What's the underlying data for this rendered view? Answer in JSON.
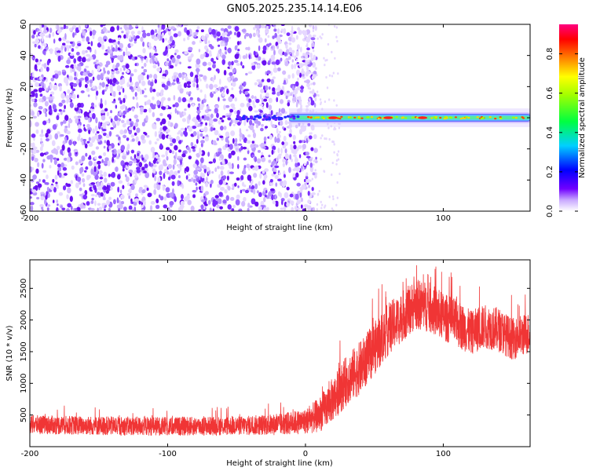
{
  "title": "GN05.2025.235.14.14.E06",
  "chart_data": [
    {
      "type": "heatmap",
      "xlabel": "Height of straight line (km)",
      "ylabel": "Frequency (Hz)",
      "xlim": [
        -200,
        163
      ],
      "ylim": [
        -60,
        60
      ],
      "xticks": [
        -200,
        -100,
        0,
        100
      ],
      "xtick_labels": [
        "-200",
        "-100",
        "0",
        "100"
      ],
      "yticks": [
        -60,
        -40,
        -20,
        0,
        20,
        40,
        60
      ],
      "ytick_labels": [
        "-60",
        "-40",
        "-20",
        "0",
        "20",
        "40",
        "60"
      ],
      "colorbar": {
        "label": "Normalized spectral amplitude",
        "range": [
          0,
          0.95
        ],
        "ticks": [
          0,
          0.2,
          0.4,
          0.6,
          0.8
        ],
        "tick_labels": [
          "0.0",
          "0.2",
          "0.4",
          "0.6",
          "0.8"
        ],
        "colormap": "rainbow (white-purple-blue-cyan-green-yellow-red-magenta)"
      },
      "features": {
        "noise_region_x": [
          -200,
          0
        ],
        "noise_amplitude": [
          0.0,
          0.15
        ],
        "signal_band": {
          "x_start": -50,
          "x_end": 163,
          "frequency": 0,
          "amplitude_range": [
            0.3,
            0.95
          ],
          "peak_near_x": [
            20,
            60,
            85
          ]
        }
      },
      "grid": false
    },
    {
      "type": "line",
      "xlabel": "Height of straight line (km)",
      "ylabel": "SNR (10 * v/v)",
      "xlim": [
        -200,
        163
      ],
      "ylim": [
        0,
        2950
      ],
      "xticks": [
        -200,
        -100,
        0,
        100
      ],
      "xtick_labels": [
        "-200",
        "-100",
        "0",
        "100"
      ],
      "yticks": [
        500,
        1000,
        1500,
        2000,
        2500
      ],
      "ytick_labels": [
        "500",
        "1000",
        "1500",
        "2000",
        "2500"
      ],
      "line_color": "#f03535",
      "series": [
        {
          "x": [
            -200,
            -150,
            -100,
            -50,
            -20,
            0,
            10,
            20,
            30,
            40,
            50,
            60,
            70,
            80,
            90,
            100,
            110,
            120,
            130,
            140,
            150,
            163
          ],
          "mean": [
            350,
            330,
            320,
            330,
            350,
            400,
            500,
            750,
            1050,
            1250,
            1550,
            1850,
            2050,
            2250,
            2200,
            2050,
            1950,
            1800,
            1900,
            1850,
            1700,
            1800
          ],
          "spread": [
            150,
            150,
            150,
            150,
            170,
            200,
            280,
            350,
            400,
            420,
            420,
            420,
            400,
            400,
            400,
            380,
            380,
            350,
            350,
            350,
            330,
            330
          ]
        }
      ],
      "grid": false
    }
  ]
}
